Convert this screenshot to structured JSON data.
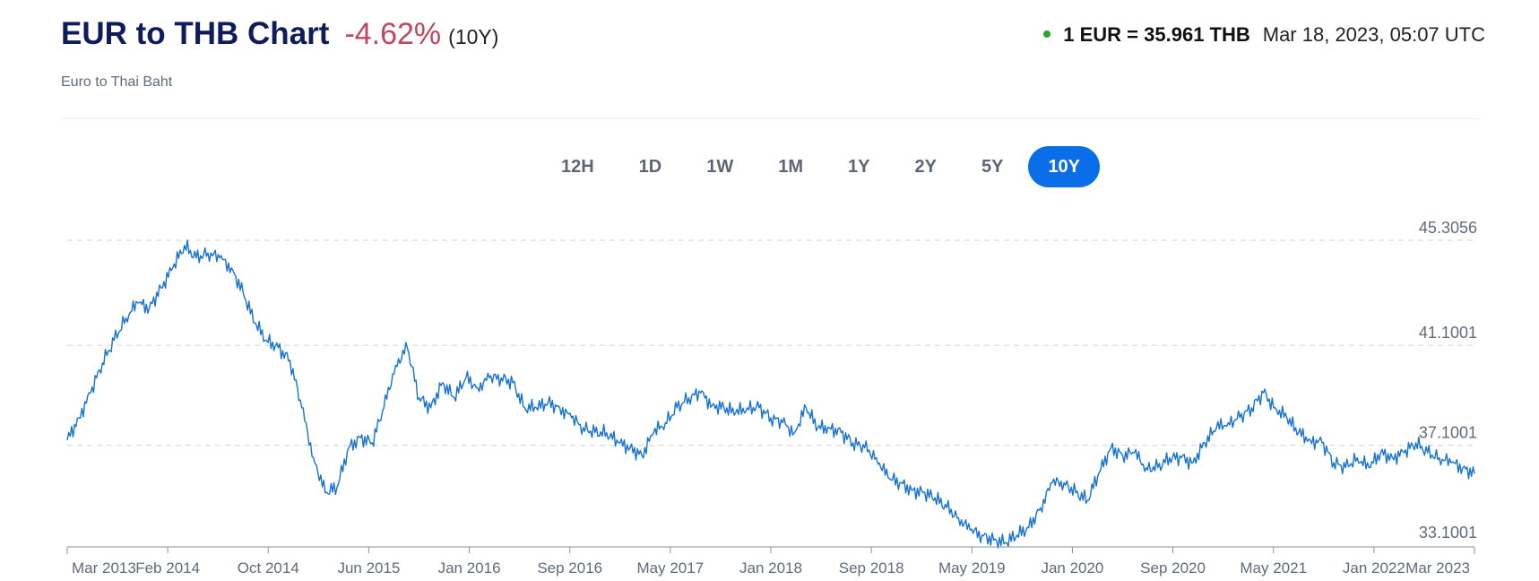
{
  "header": {
    "title": "EUR to THB Chart",
    "change": "-4.62%",
    "change_color": "#c0475f",
    "period": "(10Y)",
    "subtitle": "Euro to Thai Baht",
    "status_dot_color": "#2aa52a",
    "rate": "1 EUR = 35.961 THB",
    "timestamp": "Mar 18, 2023, 05:07 UTC"
  },
  "range_tabs": [
    {
      "label": "12H",
      "active": false
    },
    {
      "label": "1D",
      "active": false
    },
    {
      "label": "1W",
      "active": false
    },
    {
      "label": "1M",
      "active": false
    },
    {
      "label": "1Y",
      "active": false
    },
    {
      "label": "2Y",
      "active": false
    },
    {
      "label": "5Y",
      "active": false
    },
    {
      "label": "10Y",
      "active": true
    }
  ],
  "chart_data": {
    "type": "line",
    "title": "",
    "xlabel": "",
    "ylabel": "",
    "line_color": "#1572d3",
    "grid": "horizontal dashed",
    "x_start": "2013-03",
    "x_end": "2023-03",
    "x_ticks": [
      "Mar 2013",
      "Feb 2014",
      "Oct 2014",
      "Jun 2015",
      "Jan 2016",
      "Sep 2016",
      "May 2017",
      "Jan 2018",
      "Sep 2018",
      "May 2019",
      "Jan 2020",
      "Sep 2020",
      "May 2021",
      "Jan 2022",
      "Mar 2023"
    ],
    "y_ticks": [
      "45.3056",
      "41.1001",
      "37.1001",
      "33.1001"
    ],
    "ylim": [
      33.1001,
      45.3056
    ],
    "series": [
      {
        "x": [
          "2013-03",
          "2013-04",
          "2013-05",
          "2013-06",
          "2013-07",
          "2013-08",
          "2013-09",
          "2013-10",
          "2013-11",
          "2013-12",
          "2014-01",
          "2014-02",
          "2014-03",
          "2014-04",
          "2014-05",
          "2014-06",
          "2014-07",
          "2014-08",
          "2014-09",
          "2014-10",
          "2014-11",
          "2014-12",
          "2015-01",
          "2015-02",
          "2015-03",
          "2015-04",
          "2015-05",
          "2015-06",
          "2015-07",
          "2015-08",
          "2015-09",
          "2015-10",
          "2015-11",
          "2015-12",
          "2016-01",
          "2016-02",
          "2016-03",
          "2016-04",
          "2016-05",
          "2016-06",
          "2016-07",
          "2016-08",
          "2016-09",
          "2016-10",
          "2016-11",
          "2016-12",
          "2017-01",
          "2017-02",
          "2017-03",
          "2017-04",
          "2017-05",
          "2017-06",
          "2017-07",
          "2017-08",
          "2017-09",
          "2017-10",
          "2017-11",
          "2017-12",
          "2018-01",
          "2018-02",
          "2018-03",
          "2018-04",
          "2018-05",
          "2018-06",
          "2018-07",
          "2018-08",
          "2018-09",
          "2018-10",
          "2018-11",
          "2018-12",
          "2019-01",
          "2019-02",
          "2019-03",
          "2019-04",
          "2019-05",
          "2019-06",
          "2019-07",
          "2019-08",
          "2019-09",
          "2019-10",
          "2019-11",
          "2019-12",
          "2020-01",
          "2020-02",
          "2020-03",
          "2020-04",
          "2020-05",
          "2020-06",
          "2020-07",
          "2020-08",
          "2020-09",
          "2020-10",
          "2020-11",
          "2020-12",
          "2021-01",
          "2021-02",
          "2021-03",
          "2021-04",
          "2021-05",
          "2021-06",
          "2021-07",
          "2021-08",
          "2021-09",
          "2021-10",
          "2021-11",
          "2021-12",
          "2022-01",
          "2022-02",
          "2022-03",
          "2022-04",
          "2022-05",
          "2022-06",
          "2022-07",
          "2022-08",
          "2022-09",
          "2022-10",
          "2022-11",
          "2022-12",
          "2023-01",
          "2023-02",
          "2023-03"
        ],
        "values": [
          37.3,
          38.2,
          39.2,
          40.4,
          41.3,
          42.2,
          42.8,
          42.6,
          43.4,
          44.2,
          45.1,
          44.6,
          44.8,
          44.6,
          44.2,
          43.2,
          42.0,
          41.3,
          41.0,
          40.5,
          38.6,
          36.6,
          35.2,
          35.4,
          37.0,
          37.4,
          37.2,
          38.6,
          40.3,
          41.0,
          39.0,
          38.6,
          39.6,
          39.0,
          39.8,
          39.4,
          39.8,
          39.8,
          39.6,
          38.6,
          38.6,
          38.8,
          38.6,
          38.2,
          37.8,
          37.6,
          37.6,
          37.2,
          37.0,
          36.7,
          37.6,
          38.0,
          38.6,
          39.0,
          39.2,
          38.7,
          38.6,
          38.4,
          38.6,
          38.6,
          38.2,
          38.0,
          37.6,
          38.6,
          37.8,
          37.8,
          37.6,
          37.2,
          37.0,
          36.6,
          35.8,
          35.6,
          35.3,
          35.2,
          35.0,
          34.6,
          34.2,
          33.7,
          33.5,
          33.3,
          33.2,
          33.5,
          33.8,
          34.6,
          35.6,
          35.6,
          35.2,
          34.9,
          36.0,
          37.0,
          36.7,
          36.8,
          36.2,
          36.2,
          36.6,
          36.6,
          36.4,
          37.2,
          37.8,
          38.0,
          38.2,
          38.6,
          39.2,
          38.6,
          38.2,
          37.6,
          37.3,
          37.2,
          36.4,
          36.2,
          36.6,
          36.2,
          36.8,
          36.6,
          36.8,
          37.2,
          36.8,
          36.6,
          36.4,
          36.2,
          35.961
        ]
      }
    ]
  }
}
